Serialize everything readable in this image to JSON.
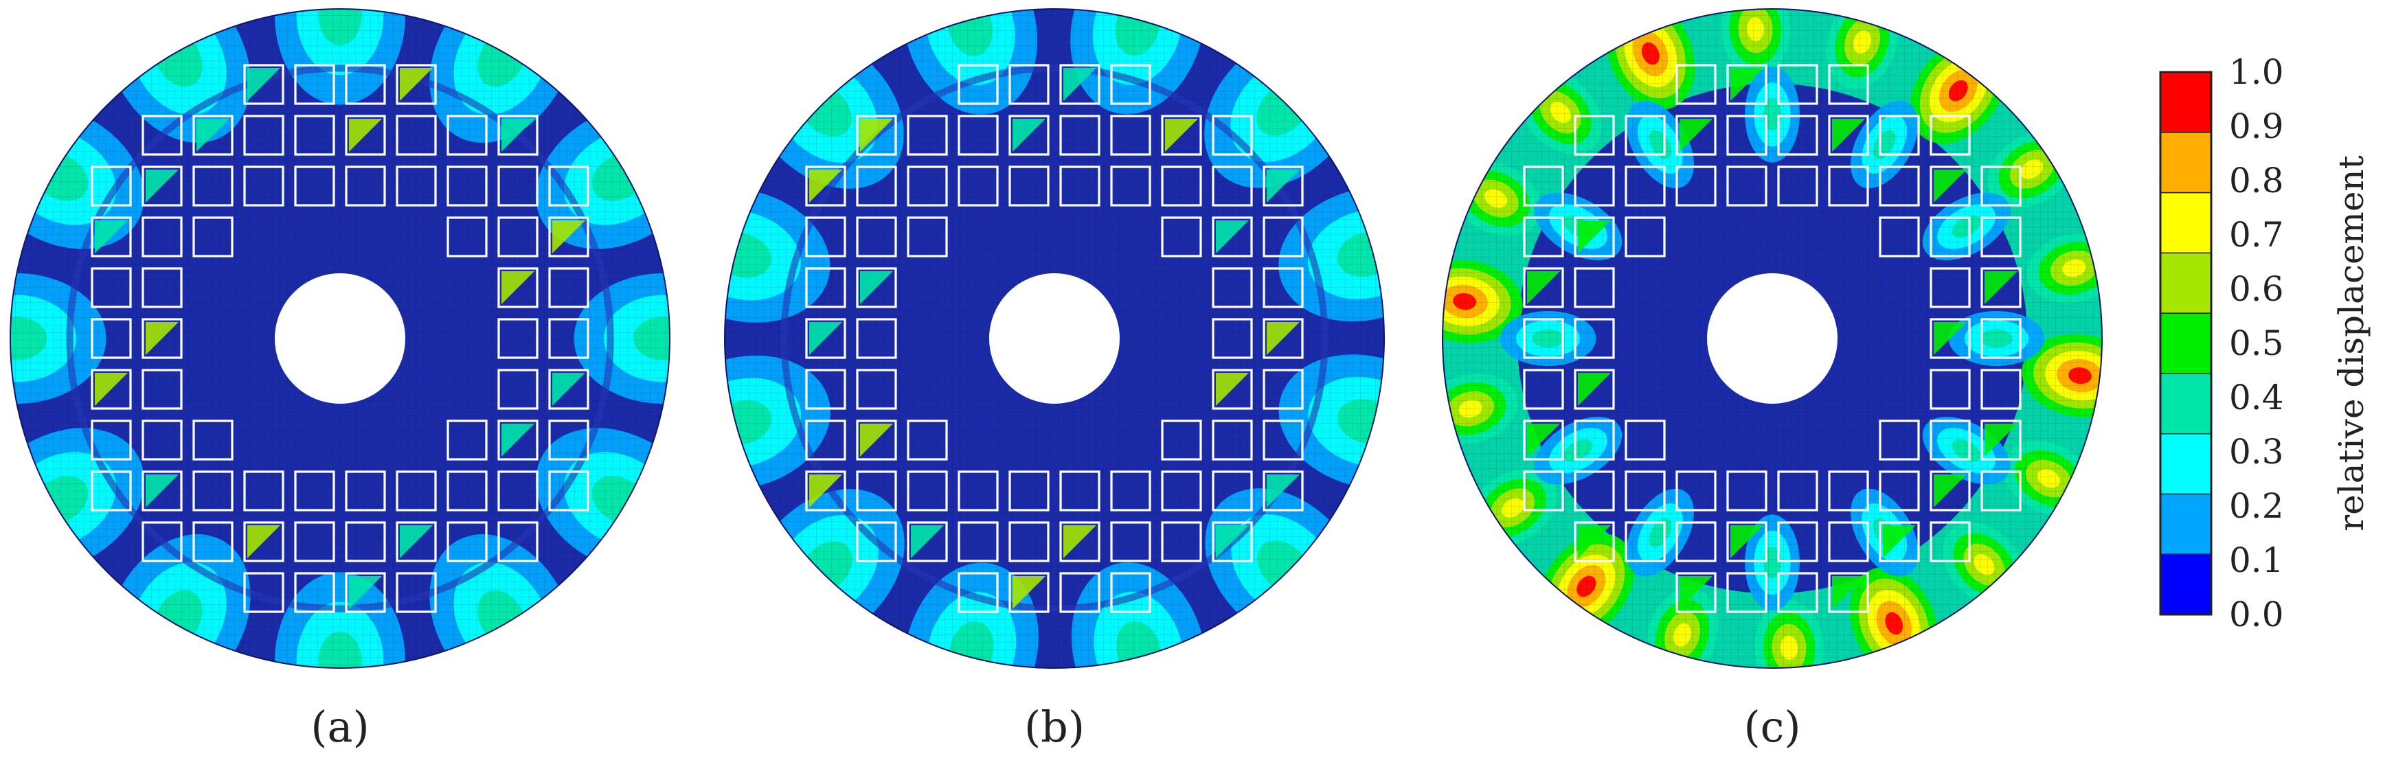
{
  "panels": [
    {
      "label": "(a)",
      "mode": "low"
    },
    {
      "label": "(b)",
      "mode": "low"
    },
    {
      "label": "(c)",
      "mode": "high"
    }
  ],
  "colorbar": {
    "title": "relative displacement",
    "colors": [
      "#0000ff",
      "#00a6ff",
      "#00ffff",
      "#00e6a8",
      "#00ee00",
      "#a6e600",
      "#ffff00",
      "#ffad00",
      "#ff0000"
    ],
    "ticks": [
      "0.0",
      "0.1",
      "0.2",
      "0.3",
      "0.4",
      "0.5",
      "0.6",
      "0.7",
      "0.8",
      "0.9",
      "1.0"
    ],
    "range": [
      0.0,
      1.0
    ]
  },
  "colors": {
    "disc": "#1b2ba8",
    "background": "#ffffff",
    "text": "#222222"
  }
}
